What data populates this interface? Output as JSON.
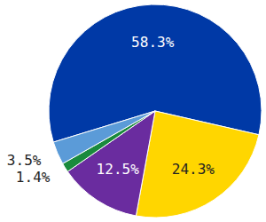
{
  "chart_data": {
    "type": "pie",
    "values": [
      58.3,
      24.3,
      12.5,
      1.4,
      3.5
    ],
    "value_labels": [
      "58.3%",
      "24.3%",
      "12.5%",
      "1.4%",
      "3.5%"
    ],
    "colors": [
      "#0039a6",
      "#ffd600",
      "#6a2c9f",
      "#1a8a3c",
      "#5b9bd8"
    ],
    "data_labels": true
  }
}
